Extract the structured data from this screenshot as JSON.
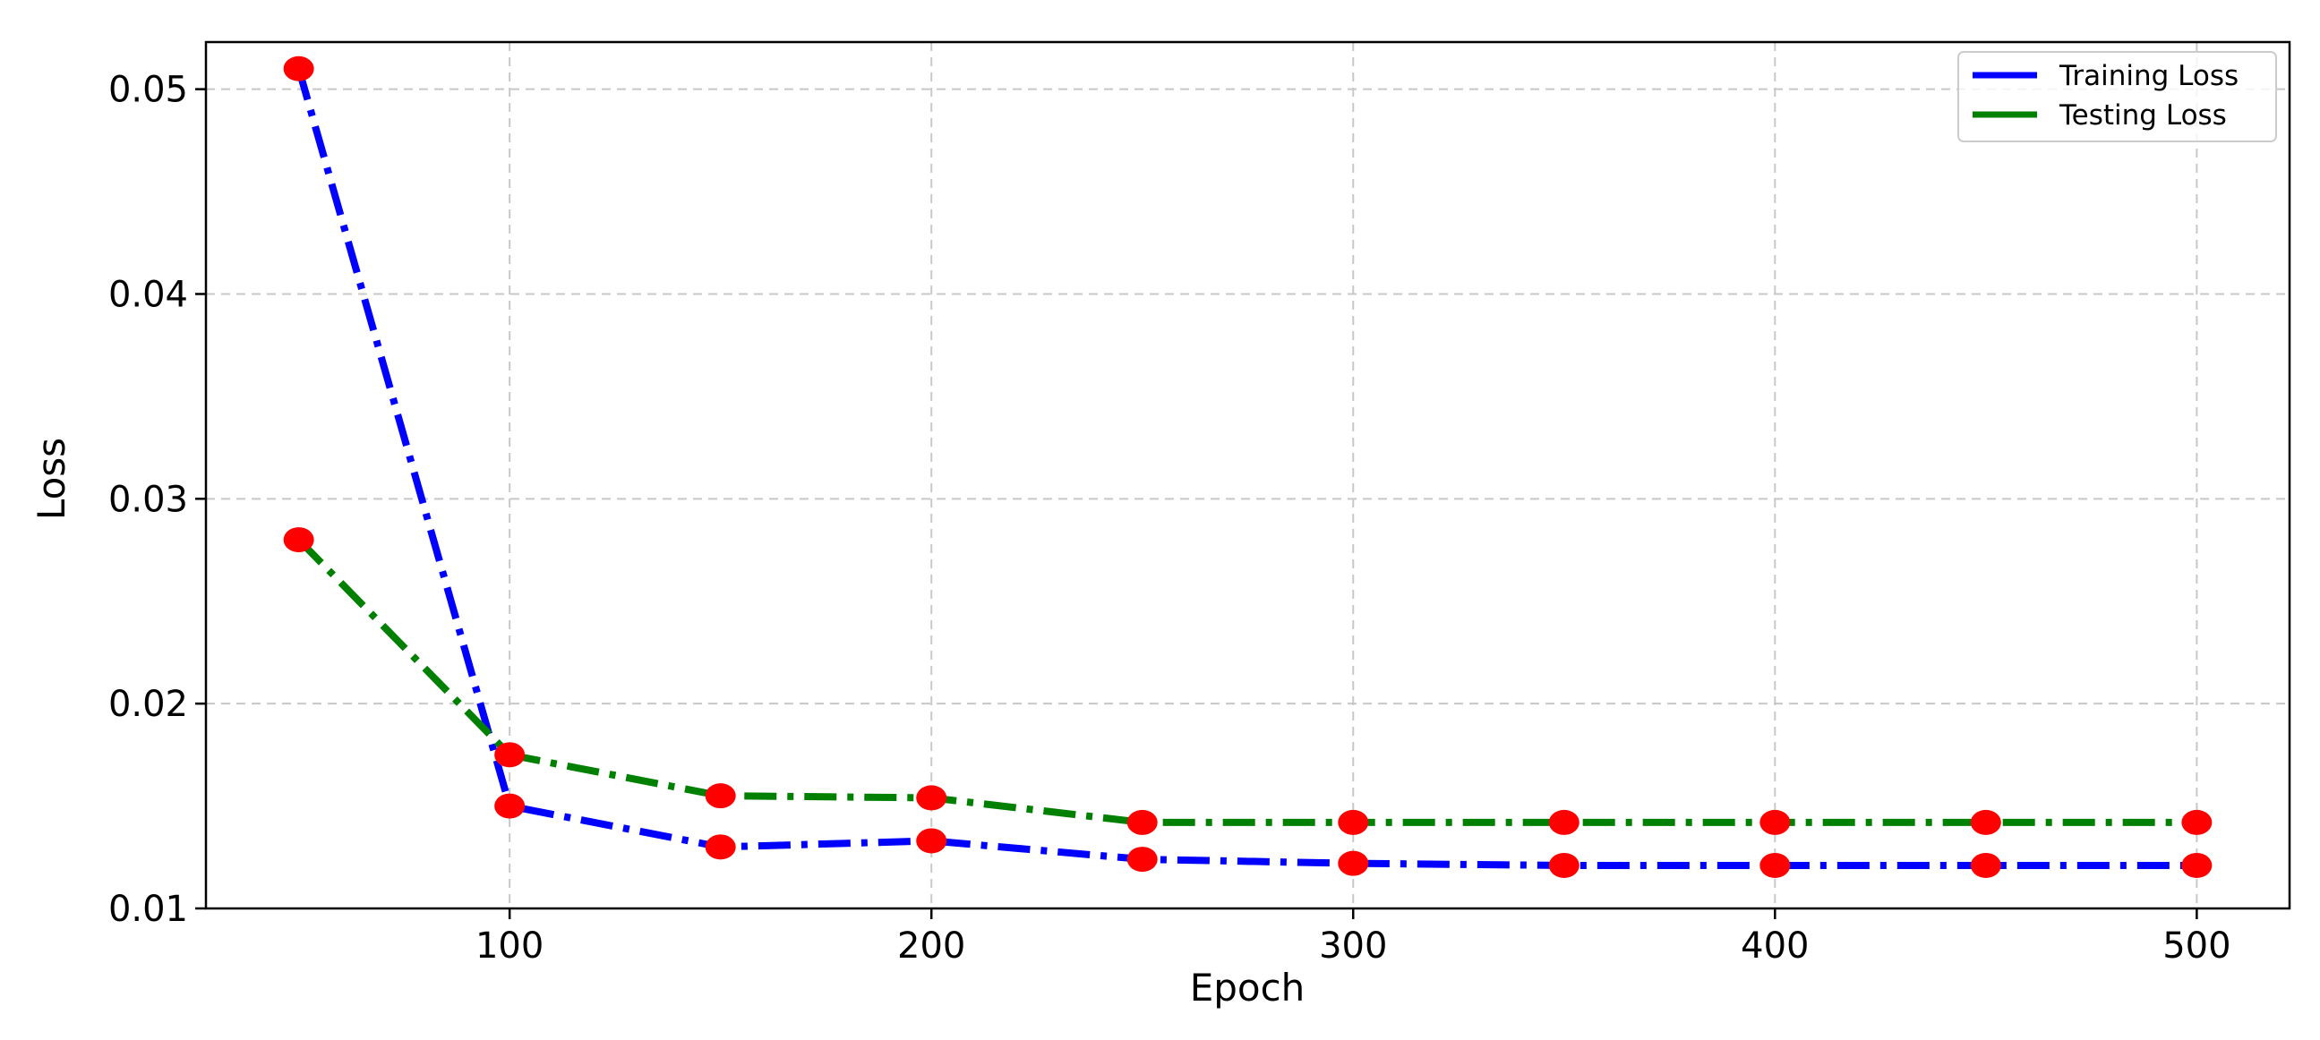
{
  "chart_data": {
    "type": "line",
    "title": "",
    "xlabel": "Epoch",
    "ylabel": "Loss",
    "x": [
      50,
      100,
      150,
      200,
      250,
      300,
      350,
      400,
      450,
      500
    ],
    "xlim": [
      28,
      522
    ],
    "ylim": [
      0.01,
      0.0523
    ],
    "xticks": [
      100,
      200,
      300,
      400,
      500
    ],
    "yticks": [
      0.01,
      0.02,
      0.03,
      0.04,
      0.05
    ],
    "xtick_labels": [
      "100",
      "200",
      "300",
      "400",
      "500"
    ],
    "ytick_labels": [
      "0.01",
      "0.02",
      "0.03",
      "0.04",
      "0.05"
    ],
    "grid": true,
    "legend_position": "top-right",
    "marker_color": "#ff0000",
    "series": [
      {
        "name": "Training Loss",
        "color": "#0000ff",
        "line_style": "dash-dot",
        "values": [
          0.051,
          0.015,
          0.013,
          0.0133,
          0.0124,
          0.0122,
          0.0121,
          0.0121,
          0.0121,
          0.0121
        ]
      },
      {
        "name": "Testing Loss",
        "color": "#008000",
        "line_style": "dash-dot",
        "values": [
          0.028,
          0.0175,
          0.0155,
          0.0154,
          0.0142,
          0.0142,
          0.0142,
          0.0142,
          0.0142,
          0.0142
        ]
      }
    ]
  }
}
